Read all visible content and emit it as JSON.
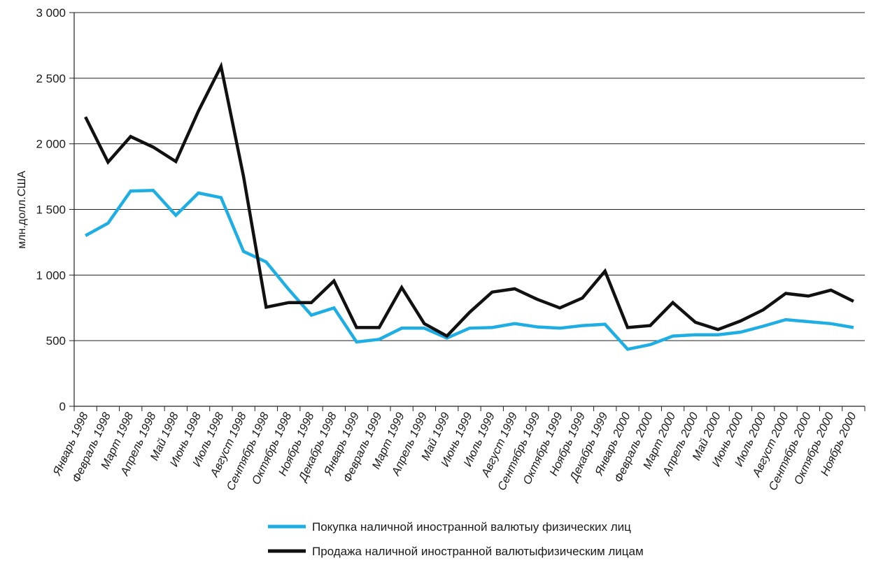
{
  "chart_data": {
    "type": "line",
    "title": "",
    "xlabel": "",
    "ylabel": "млн.долл.США",
    "ylim": [
      0,
      3000
    ],
    "yticks": [
      0,
      500,
      1000,
      1500,
      2000,
      2500,
      3000
    ],
    "ytick_labels": [
      "0",
      "500",
      "1 000",
      "1 500",
      "2 000",
      "2 500",
      "3 000"
    ],
    "grid": true,
    "legend_position": "bottom",
    "categories": [
      "Январь 1998",
      "Февраль 1998",
      "Март 1998",
      "Апрель 1998",
      "Май 1998",
      "Июнь 1998",
      "Июль 1998",
      "Август 1998",
      "Сентябрь 1998",
      "Октябрь 1998",
      "Ноябрь 1998",
      "Декабрь 1998",
      "Январь 1999",
      "Февраль 1999",
      "Март 1999",
      "Апрель 1999",
      "Май 1999",
      "Июнь 1999",
      "Июль 1999",
      "Август 1999",
      "Сентябрь 1999",
      "Октябрь 1999",
      "Ноябрь 1999",
      "Декабрь 1999",
      "Январь 2000",
      "Февраль 2000",
      "Март 2000",
      "Апрель 2000",
      "Май 2000",
      "Июнь 2000",
      "Июль 2000",
      "Август 2000",
      "Сентябрь 2000",
      "Октябрь 2000",
      "Ноябрь 2000"
    ],
    "series": [
      {
        "name": "Покупка наличной иностранной валютыу физических лиц",
        "color": "#1eaee4",
        "values": [
          1300,
          1395,
          1640,
          1645,
          1455,
          1625,
          1590,
          1180,
          1100,
          890,
          695,
          750,
          490,
          510,
          595,
          595,
          520,
          595,
          600,
          630,
          605,
          595,
          615,
          625,
          435,
          470,
          535,
          545,
          545,
          565,
          610,
          660,
          645,
          630,
          600
        ]
      },
      {
        "name": "Продажа наличной иностранной валютыфизическим лицам",
        "color": "#111111",
        "values": [
          2205,
          1860,
          2055,
          1975,
          1865,
          2250,
          2590,
          1750,
          755,
          790,
          790,
          955,
          600,
          600,
          905,
          630,
          535,
          715,
          870,
          895,
          815,
          750,
          825,
          1030,
          600,
          615,
          790,
          640,
          585,
          650,
          735,
          860,
          840,
          885,
          800
        ]
      }
    ]
  }
}
